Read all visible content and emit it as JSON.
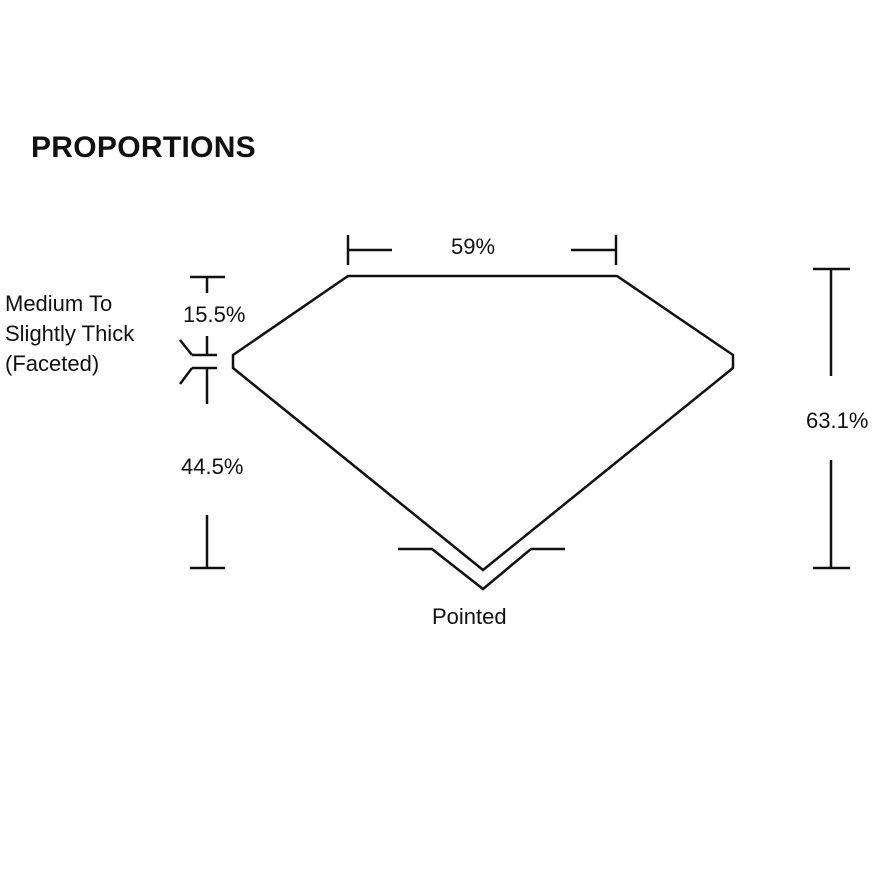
{
  "title": "PROPORTIONS",
  "labels": {
    "table": "59%",
    "crown": "15.5%",
    "pavilion": "44.5%",
    "depth": "63.1%",
    "girdle": [
      "Medium To",
      "Slightly Thick",
      "(Faceted)"
    ],
    "culet": "Pointed"
  },
  "colors": {
    "line": "#111111",
    "background": "#ffffff"
  }
}
